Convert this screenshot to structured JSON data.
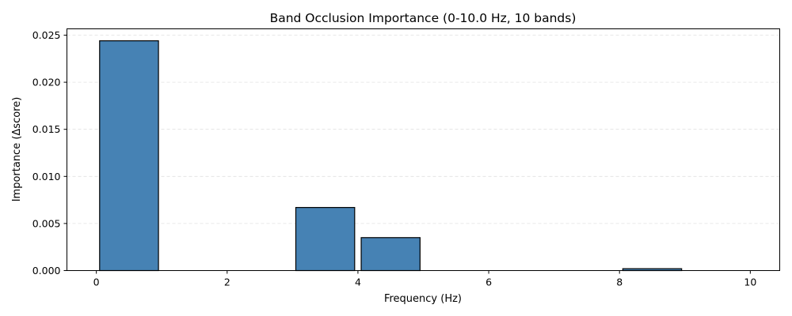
{
  "chart_data": {
    "type": "bar",
    "title": "Band Occlusion Importance (0-10.0 Hz, 10 bands)",
    "xlabel": "Frequency (Hz)",
    "ylabel": "Importance (Δscore)",
    "xlim": [
      -0.45,
      10.45
    ],
    "ylim": [
      0,
      0.02567
    ],
    "x_ticks": [
      0,
      2,
      4,
      6,
      8,
      10
    ],
    "x_tick_labels": [
      "0",
      "2",
      "4",
      "6",
      "8",
      "10"
    ],
    "y_ticks": [
      0,
      0.005,
      0.01,
      0.015,
      0.02,
      0.025
    ],
    "y_tick_labels": [
      "0.000",
      "0.005",
      "0.010",
      "0.015",
      "0.020",
      "0.025"
    ],
    "grid": "y-dashed",
    "bar_color": "#4682b4",
    "edge_color": "#000000",
    "bars": [
      {
        "x_start": 0,
        "x_end": 1,
        "value": 0.0244
      },
      {
        "x_start": 1,
        "x_end": 2,
        "value": 0.0
      },
      {
        "x_start": 2,
        "x_end": 3,
        "value": 0.0
      },
      {
        "x_start": 3,
        "x_end": 4,
        "value": 0.0067
      },
      {
        "x_start": 4,
        "x_end": 5,
        "value": 0.0035
      },
      {
        "x_start": 5,
        "x_end": 6,
        "value": 0.0
      },
      {
        "x_start": 6,
        "x_end": 7,
        "value": 0.0
      },
      {
        "x_start": 7,
        "x_end": 8,
        "value": 0.0
      },
      {
        "x_start": 8,
        "x_end": 9,
        "value": 0.0002
      },
      {
        "x_start": 9,
        "x_end": 10,
        "value": 0.0
      }
    ]
  }
}
